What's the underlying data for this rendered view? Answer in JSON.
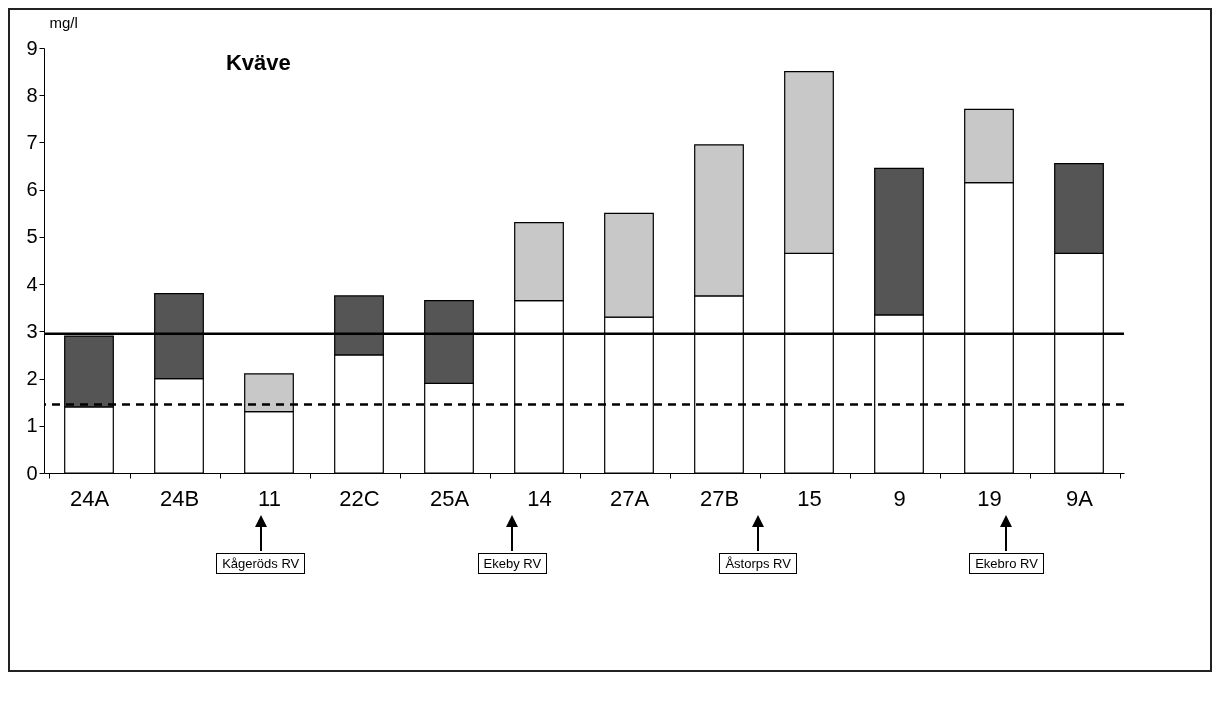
{
  "chart_data": {
    "type": "bar",
    "title": "Kväve",
    "ylabel": "mg/l",
    "stacked": true,
    "categories": [
      "24A",
      "24B",
      "11",
      "22C",
      "25A",
      "14",
      "27A",
      "27B",
      "15",
      "9",
      "19",
      "9A"
    ],
    "series": [
      {
        "color": "#ffffff",
        "values": [
          1.4,
          2.0,
          1.3,
          2.5,
          1.9,
          3.65,
          3.3,
          3.75,
          4.65,
          3.35,
          6.15,
          4.65
        ]
      },
      {
        "color": "#555555",
        "values": [
          1.5,
          1.8,
          null,
          1.25,
          1.75,
          null,
          null,
          null,
          null,
          3.1,
          null,
          1.9
        ]
      },
      {
        "color": "#c8c8c8",
        "values": [
          null,
          null,
          0.8,
          null,
          null,
          1.65,
          2.2,
          3.2,
          3.85,
          null,
          1.55,
          null
        ]
      }
    ],
    "ylim": [
      0,
      9
    ],
    "yticks": [
      0,
      1,
      2,
      3,
      4,
      5,
      6,
      7,
      8,
      9
    ],
    "grid": false,
    "legend": false,
    "ref_lines": [
      {
        "axis": "y",
        "value": 2.95,
        "line_style": "solid"
      },
      {
        "axis": "y",
        "value": 1.45,
        "line_style": "dashed"
      }
    ],
    "annotations": [
      "Kågeröds RV",
      "Ekeby RV",
      "Åstorps RV",
      "Ekebro RV"
    ]
  }
}
